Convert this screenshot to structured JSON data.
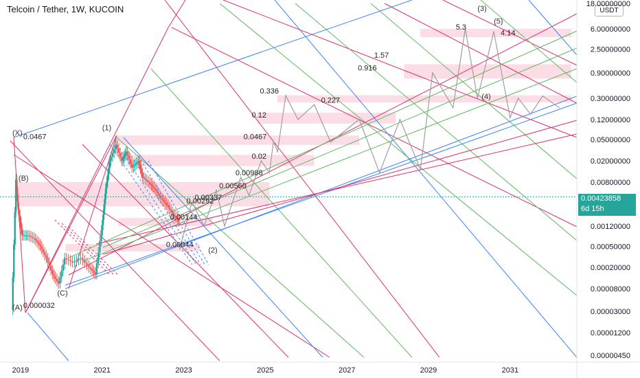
{
  "header": {
    "title": "Telcoin / Tether, 1W, KUCOIN",
    "currency": "USDT"
  },
  "price_tag": {
    "price": "0.00423858",
    "countdown": "6d 15h"
  },
  "colors": {
    "pitchfork_red": "#e0306a",
    "pitchfork_green": "#5cb85c",
    "pitchfork_blue": "#3b82f6",
    "band_pink": "#fbd0dc",
    "projection_gray": "#9e9e9e",
    "price_tag_teal": "#26a69a",
    "candle_up": "#26a69a",
    "candle_down": "#ef5350"
  },
  "chart_data": {
    "type": "line",
    "title": "Telcoin / Tether, 1W, KUCOIN",
    "y_scale": "log",
    "x_ticks": [
      "2019",
      "2021",
      "2023",
      "2025",
      "2027",
      "2029",
      "2031"
    ],
    "y_ticks": [
      "18.00000000",
      "6.00000000",
      "2.50000000",
      "0.90000000",
      "0.30000000",
      "0.12000000",
      "0.05000000",
      "0.02000000",
      "0.00800000",
      "0.00120000",
      "0.00050000",
      "0.00020000",
      "0.00008000",
      "0.00003000",
      "0.00001200",
      "0.00000450"
    ],
    "current_price": 0.00423858,
    "wave_labels": [
      {
        "text": "(X)",
        "x": 2018.8,
        "y": 0.06
      },
      {
        "text": "(B)",
        "x": 2018.95,
        "y": 0.0085
      },
      {
        "text": "(A)",
        "x": 2018.8,
        "y": 3.2e-05
      },
      {
        "text": "(C)",
        "x": 2019.9,
        "y": 6e-05
      },
      {
        "text": "(1)",
        "x": 2021.0,
        "y": 0.075
      },
      {
        "text": "(2)",
        "x": 2023.6,
        "y": 0.00038
      },
      {
        "text": "(3)",
        "x": 2030.2,
        "y": 13
      },
      {
        "text": "(4)",
        "x": 2030.3,
        "y": 0.29
      },
      {
        "text": "(5)",
        "x": 2030.6,
        "y": 7.5
      }
    ],
    "annotations": [
      {
        "text": "0.0467",
        "x": 2019.0,
        "y": 0.0467
      },
      {
        "text": "0.000032",
        "x": 2019.0,
        "y": 3.2e-05
      },
      {
        "text": "0.00044",
        "x": 2022.5,
        "y": 0.00044
      },
      {
        "text": "0.00144",
        "x": 2022.6,
        "y": 0.00144
      },
      {
        "text": "0.00292",
        "x": 2023.0,
        "y": 0.00292
      },
      {
        "text": "0.00337",
        "x": 2023.2,
        "y": 0.00337
      },
      {
        "text": "0.00560",
        "x": 2023.8,
        "y": 0.0056
      },
      {
        "text": "0.00988",
        "x": 2024.2,
        "y": 0.00988
      },
      {
        "text": "0.02",
        "x": 2024.6,
        "y": 0.02
      },
      {
        "text": "0.0467",
        "x": 2024.4,
        "y": 0.0467
      },
      {
        "text": "0.12",
        "x": 2024.6,
        "y": 0.12
      },
      {
        "text": "0.336",
        "x": 2024.8,
        "y": 0.336
      },
      {
        "text": "0.227",
        "x": 2026.3,
        "y": 0.227
      },
      {
        "text": "0.916",
        "x": 2027.2,
        "y": 0.916
      },
      {
        "text": "1.57",
        "x": 2027.6,
        "y": 1.57
      },
      {
        "text": "5.3",
        "x": 2029.6,
        "y": 5.3
      },
      {
        "text": "4.14",
        "x": 2030.7,
        "y": 4.14
      }
    ],
    "projection_path": [
      [
        2022.9,
        0.00044
      ],
      [
        2023.2,
        0.00337
      ],
      [
        2023.5,
        0.0012
      ],
      [
        2023.8,
        0.0056
      ],
      [
        2024.0,
        0.0012
      ],
      [
        2024.4,
        0.00988
      ],
      [
        2024.6,
        0.0045
      ],
      [
        2024.9,
        0.02
      ],
      [
        2025.1,
        0.012
      ],
      [
        2025.2,
        0.0467
      ],
      [
        2025.3,
        0.03
      ],
      [
        2025.5,
        0.336
      ],
      [
        2025.8,
        0.12
      ],
      [
        2026.2,
        0.227
      ],
      [
        2026.6,
        0.045
      ],
      [
        2027.3,
        0.12
      ],
      [
        2027.8,
        0.012
      ],
      [
        2028.3,
        0.12
      ],
      [
        2028.8,
        0.014
      ],
      [
        2029.1,
        0.9
      ],
      [
        2029.6,
        0.2
      ],
      [
        2029.9,
        6.0
      ],
      [
        2030.2,
        0.3
      ],
      [
        2030.6,
        5.3
      ],
      [
        2031.0,
        0.13
      ],
      [
        2031.2,
        0.3
      ],
      [
        2031.5,
        0.15
      ],
      [
        2031.8,
        0.33
      ],
      [
        2032.2,
        0.2
      ]
    ],
    "price_history": [
      [
        2018.8,
        3.2e-05
      ],
      [
        2018.9,
        0.009
      ],
      [
        2018.95,
        0.0025
      ],
      [
        2019.05,
        0.0008
      ],
      [
        2019.2,
        0.0008
      ],
      [
        2019.35,
        0.0007
      ],
      [
        2019.5,
        0.0005
      ],
      [
        2019.65,
        0.0003
      ],
      [
        2019.8,
        0.00015
      ],
      [
        2019.95,
        0.0001
      ],
      [
        2020.1,
        0.0003
      ],
      [
        2020.3,
        0.00025
      ],
      [
        2020.5,
        0.0003
      ],
      [
        2020.7,
        0.0002
      ],
      [
        2020.85,
        0.00015
      ],
      [
        2021.0,
        0.001
      ],
      [
        2021.1,
        0.006
      ],
      [
        2021.2,
        0.02
      ],
      [
        2021.35,
        0.04
      ],
      [
        2021.5,
        0.02
      ],
      [
        2021.6,
        0.03
      ],
      [
        2021.75,
        0.015
      ],
      [
        2021.9,
        0.02
      ],
      [
        2022.0,
        0.01
      ],
      [
        2022.15,
        0.008
      ],
      [
        2022.3,
        0.006
      ],
      [
        2022.45,
        0.004
      ],
      [
        2022.6,
        0.003
      ],
      [
        2022.75,
        0.002
      ],
      [
        2022.9,
        0.0015
      ]
    ]
  }
}
